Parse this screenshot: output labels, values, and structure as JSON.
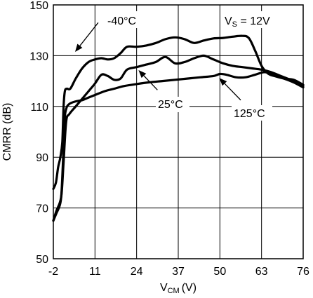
{
  "chart_data": {
    "type": "line",
    "ylabel": "CMRR (dB)",
    "xlabel_main": "V",
    "xlabel_sub": "CM",
    "xlabel_unit": "(V)",
    "xlim": [
      -2,
      76
    ],
    "ylim": [
      50,
      150
    ],
    "x_ticks": [
      -2,
      11,
      24,
      37,
      50,
      63,
      76
    ],
    "x_tick_labels": [
      "-2",
      "11",
      "24",
      "37",
      "50",
      "63",
      "76"
    ],
    "y_ticks": [
      50,
      70,
      90,
      110,
      130,
      150
    ],
    "y_tick_labels": [
      "50",
      "70",
      "90",
      "110",
      "130",
      "150"
    ],
    "grid": true,
    "condition_main": "V",
    "condition_sub": "S",
    "condition_rest": " = 12V",
    "series": [
      {
        "name": "-40°C",
        "x": [
          -2,
          -1.2,
          -0.5,
          0.2,
          0.8,
          1.2,
          1.6,
          2.2,
          3.3,
          5,
          7,
          9,
          11,
          13,
          15,
          17,
          19,
          21,
          24,
          27,
          30,
          33,
          36,
          39,
          42,
          45,
          48,
          51,
          54,
          57,
          59,
          61,
          63,
          65,
          67,
          70,
          73,
          76
        ],
        "y": [
          77.5,
          80,
          86,
          90,
          96,
          110,
          116,
          117,
          117,
          121,
          125,
          127.5,
          128.5,
          129,
          128.5,
          129,
          131,
          133.5,
          133.5,
          134,
          135,
          136.5,
          137.2,
          136.5,
          135,
          136,
          136.8,
          137,
          137.5,
          137.8,
          137,
          132,
          126,
          123,
          122,
          121,
          120.5,
          118.5
        ]
      },
      {
        "name": "25°C",
        "x": [
          -2,
          -1,
          0,
          0.6,
          1.2,
          2,
          3,
          5,
          7,
          9,
          11,
          13,
          15,
          17,
          19,
          21,
          24,
          27,
          30,
          33,
          36,
          39,
          42,
          45,
          48,
          51,
          54,
          57,
          60,
          63,
          66,
          69,
          72,
          76
        ],
        "y": [
          65,
          69,
          72,
          76,
          88,
          104,
          107,
          110,
          113,
          116,
          119,
          122.5,
          122,
          120.5,
          121,
          124.5,
          125.5,
          126.5,
          127.5,
          129.5,
          127,
          127.5,
          129,
          130,
          128.5,
          127,
          126,
          125.5,
          125,
          124.5,
          123.5,
          122,
          120.5,
          118
        ]
      },
      {
        "name": "125°C",
        "x": [
          -2,
          -1,
          0,
          0.5,
          1,
          1.5,
          2,
          3,
          5,
          7,
          9,
          11,
          14,
          17,
          20,
          24,
          28,
          32,
          36,
          40,
          44,
          48,
          50,
          52,
          55,
          58,
          61,
          64,
          67,
          70,
          73,
          76
        ],
        "y": [
          65,
          68,
          71,
          75,
          88,
          104,
          109,
          111,
          112,
          112.5,
          113.5,
          114.5,
          116,
          117,
          118,
          118.8,
          119.5,
          120,
          120.5,
          121,
          121.5,
          122,
          122.8,
          122.5,
          121.5,
          121.5,
          122.5,
          123.5,
          122.5,
          121,
          119.5,
          117.5
        ]
      }
    ],
    "annotations": [
      {
        "label": "-40°C",
        "arrow_from": [
          12,
          143
        ],
        "arrow_to": [
          4.8,
          131.5
        ]
      },
      {
        "label": "25°C",
        "arrow_from": [
          30.5,
          116.5
        ],
        "arrow_to": [
          24.6,
          124.3
        ]
      },
      {
        "label": "125°C",
        "arrow_from": [
          56.5,
          112.5
        ],
        "arrow_to": [
          49.8,
          121.2
        ]
      }
    ]
  }
}
